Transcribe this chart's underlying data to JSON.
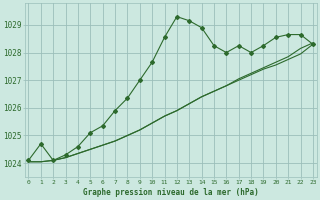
{
  "title": "Graphe pression niveau de la mer (hPa)",
  "background_color": "#cce8e0",
  "grid_color": "#9bbfba",
  "line_color": "#2d6a2d",
  "x_labels": [
    "0",
    "1",
    "2",
    "3",
    "4",
    "5",
    "6",
    "7",
    "8",
    "9",
    "10",
    "11",
    "12",
    "13",
    "14",
    "15",
    "16",
    "17",
    "18",
    "19",
    "20",
    "21",
    "22",
    "23"
  ],
  "ylim": [
    1023.5,
    1029.8
  ],
  "yticks": [
    1024,
    1025,
    1026,
    1027,
    1028,
    1029
  ],
  "series1": [
    1024.1,
    1024.7,
    1024.1,
    1024.3,
    1024.6,
    1025.1,
    1025.35,
    1025.9,
    1026.35,
    1027.0,
    1027.65,
    1028.55,
    1029.3,
    1029.15,
    1028.9,
    1028.25,
    1028.0,
    1028.25,
    1028.0,
    1028.25,
    1028.55,
    1028.65,
    1028.65,
    1028.3
  ],
  "series2": [
    1024.05,
    1024.05,
    1024.1,
    1024.2,
    1024.35,
    1024.5,
    1024.65,
    1024.8,
    1025.0,
    1025.2,
    1025.45,
    1025.7,
    1025.9,
    1026.15,
    1026.4,
    1026.6,
    1026.8,
    1027.0,
    1027.2,
    1027.4,
    1027.55,
    1027.75,
    1027.95,
    1028.3
  ],
  "series3": [
    1024.05,
    1024.05,
    1024.1,
    1024.2,
    1024.35,
    1024.5,
    1024.65,
    1024.8,
    1025.0,
    1025.2,
    1025.45,
    1025.7,
    1025.9,
    1026.15,
    1026.4,
    1026.6,
    1026.8,
    1027.05,
    1027.25,
    1027.45,
    1027.65,
    1027.85,
    1028.15,
    1028.35
  ]
}
